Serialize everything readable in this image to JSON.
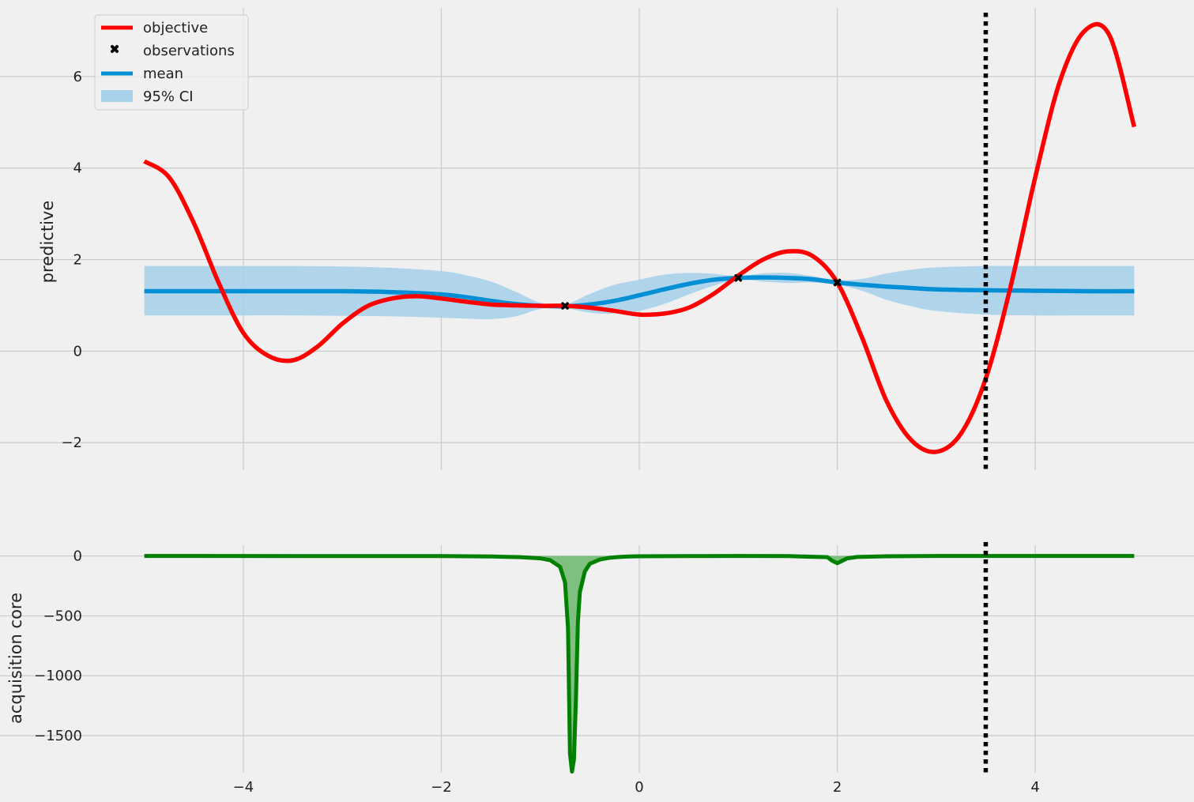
{
  "chart_data": [
    {
      "type": "line",
      "ylabel": "predictive",
      "xlabel": "",
      "xlim": [
        -5.5,
        5.5
      ],
      "ylim": [
        -2.6,
        7.5
      ],
      "xticks": [
        -4,
        -2,
        0,
        2,
        4
      ],
      "yticks": [
        -2,
        0,
        2,
        4,
        6
      ],
      "xtick_labels": [
        "−4",
        "−2",
        "0",
        "2",
        "4"
      ],
      "ytick_labels": [
        "−2",
        "0",
        "2",
        "4",
        "6"
      ],
      "grid": true,
      "legend_position": "top-left",
      "vline_x": 3.5,
      "colors": {
        "objective": "#ff0000",
        "mean": "#008fd5",
        "ci": "#a8d1ea",
        "observations": "#000000",
        "vline": "#000000"
      },
      "series": [
        {
          "name": "objective",
          "x": [
            -5.0,
            -4.75,
            -4.5,
            -4.25,
            -4.0,
            -3.75,
            -3.5,
            -3.25,
            -3.0,
            -2.75,
            -2.5,
            -2.25,
            -2.0,
            -1.75,
            -1.5,
            -1.25,
            -1.0,
            -0.75,
            -0.5,
            -0.25,
            0.0,
            0.25,
            0.5,
            0.75,
            1.0,
            1.25,
            1.5,
            1.75,
            2.0,
            2.25,
            2.5,
            2.75,
            3.0,
            3.25,
            3.5,
            3.75,
            4.0,
            4.25,
            4.5,
            4.75,
            5.0
          ],
          "values": [
            4.15,
            3.8,
            2.8,
            1.5,
            0.4,
            -0.1,
            -0.2,
            0.1,
            0.6,
            0.98,
            1.15,
            1.2,
            1.15,
            1.08,
            1.02,
            1.0,
            0.99,
            0.99,
            0.95,
            0.88,
            0.8,
            0.82,
            0.95,
            1.25,
            1.65,
            2.0,
            2.18,
            2.08,
            1.5,
            0.3,
            -1.1,
            -1.95,
            -2.2,
            -1.8,
            -0.6,
            1.4,
            3.8,
            5.9,
            7.0,
            6.9,
            4.9
          ]
        },
        {
          "name": "mean",
          "x": [
            -5.0,
            -4.5,
            -4.0,
            -3.5,
            -3.0,
            -2.5,
            -2.0,
            -1.75,
            -1.5,
            -1.25,
            -1.0,
            -0.75,
            -0.5,
            -0.25,
            0.0,
            0.25,
            0.5,
            0.75,
            1.0,
            1.25,
            1.5,
            1.75,
            2.0,
            2.25,
            2.5,
            2.75,
            3.0,
            3.5,
            4.0,
            4.5,
            5.0
          ],
          "values": [
            1.31,
            1.31,
            1.31,
            1.31,
            1.31,
            1.29,
            1.24,
            1.18,
            1.1,
            1.03,
            0.99,
            0.98,
            1.02,
            1.1,
            1.22,
            1.35,
            1.47,
            1.56,
            1.6,
            1.61,
            1.6,
            1.57,
            1.5,
            1.45,
            1.41,
            1.38,
            1.35,
            1.33,
            1.32,
            1.31,
            1.31
          ]
        },
        {
          "name": "95% CI",
          "x": [
            -5.0,
            -4.5,
            -4.0,
            -3.5,
            -3.0,
            -2.5,
            -2.0,
            -1.75,
            -1.5,
            -1.25,
            -1.0,
            -0.75,
            -0.5,
            -0.25,
            0.0,
            0.25,
            0.5,
            0.75,
            1.0,
            1.25,
            1.5,
            1.75,
            2.0,
            2.25,
            2.5,
            2.75,
            3.0,
            3.5,
            4.0,
            4.5,
            5.0
          ],
          "upper": [
            1.86,
            1.86,
            1.86,
            1.86,
            1.85,
            1.82,
            1.75,
            1.66,
            1.52,
            1.3,
            1.06,
            1.02,
            1.25,
            1.45,
            1.56,
            1.67,
            1.71,
            1.69,
            1.64,
            1.7,
            1.71,
            1.64,
            1.55,
            1.58,
            1.7,
            1.78,
            1.83,
            1.86,
            1.86,
            1.86,
            1.86
          ],
          "lower": [
            0.78,
            0.78,
            0.78,
            0.78,
            0.77,
            0.76,
            0.73,
            0.71,
            0.7,
            0.76,
            0.92,
            0.94,
            0.84,
            0.82,
            0.88,
            1.03,
            1.24,
            1.43,
            1.56,
            1.52,
            1.49,
            1.5,
            1.45,
            1.32,
            1.12,
            0.98,
            0.88,
            0.8,
            0.78,
            0.78,
            0.78
          ]
        },
        {
          "name": "observations",
          "x": [
            -0.75,
            1.0,
            2.0
          ],
          "values": [
            0.99,
            1.6,
            1.5
          ]
        }
      ]
    },
    {
      "type": "area",
      "ylabel": "acquisition core",
      "xlabel": "",
      "xlim": [
        -5.5,
        5.5
      ],
      "ylim": [
        -1810,
        90
      ],
      "xticks": [
        -4,
        -2,
        0,
        2,
        4
      ],
      "yticks": [
        0,
        -500,
        -1000,
        -1500
      ],
      "xtick_labels": [
        "−4",
        "−2",
        "0",
        "2",
        "4"
      ],
      "ytick_labels": [
        "0",
        "−500",
        "−1000",
        "−1500"
      ],
      "grid": true,
      "vline_x": 3.5,
      "colors": {
        "line": "#008000",
        "fill": "#7fbf7f",
        "vline": "#000000"
      },
      "series": [
        {
          "name": "",
          "x": [
            -5.0,
            -2.0,
            -1.5,
            -1.2,
            -1.0,
            -0.9,
            -0.8,
            -0.75,
            -0.72,
            -0.7,
            -0.68,
            -0.66,
            -0.64,
            -0.62,
            -0.6,
            -0.55,
            -0.5,
            -0.4,
            -0.3,
            -0.2,
            -0.1,
            0.0,
            0.5,
            1.0,
            1.5,
            1.9,
            1.95,
            2.0,
            2.05,
            2.1,
            2.2,
            2.5,
            3.0,
            4.0,
            5.0
          ],
          "values": [
            0,
            -1,
            -4,
            -10,
            -20,
            -35,
            -90,
            -220,
            -600,
            -1650,
            -1800,
            -1700,
            -1200,
            -550,
            -300,
            -130,
            -65,
            -30,
            -15,
            -8,
            -4,
            -2,
            -1,
            0,
            -1,
            -10,
            -40,
            -60,
            -40,
            -20,
            -8,
            -2,
            0,
            0,
            0
          ]
        }
      ]
    }
  ],
  "legend": {
    "items": [
      {
        "label": "objective",
        "icon": "line"
      },
      {
        "label": "observations",
        "icon": "x-marker"
      },
      {
        "label": "mean",
        "icon": "line"
      },
      {
        "label": "95% CI",
        "icon": "patch"
      }
    ]
  }
}
